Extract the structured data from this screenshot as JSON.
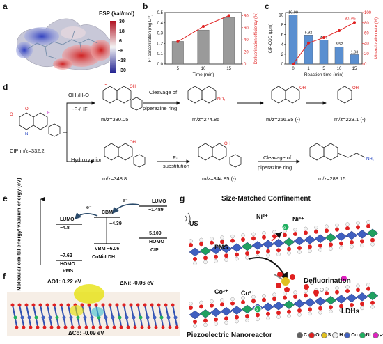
{
  "panels": {
    "a": "a",
    "b": "b",
    "c": "c",
    "d": "d",
    "e": "e",
    "f": "f",
    "g": "g"
  },
  "esp": {
    "title": "ESP (kal/mol)",
    "ticks": [
      "30",
      "18",
      "6",
      "−6",
      "−18",
      "−30"
    ]
  },
  "chart_b": {
    "type": "bar+line",
    "categories": [
      "5",
      "10",
      "15"
    ],
    "bars": [
      0.22,
      0.33,
      0.45
    ],
    "line": [
      37,
      62,
      80
    ],
    "xlabel": "Time (min)",
    "ylabel_left": "F⁻ concentration (mg L⁻¹)",
    "ylabel_right": "Defluorination efficiency (%)",
    "yticks_left": [
      "0.0",
      "0.1",
      "0.2",
      "0.3",
      "0.4",
      "0.5"
    ],
    "yticks_right": [
      "0",
      "20",
      "40",
      "60",
      "80"
    ],
    "ylim_left": [
      0,
      0.5
    ],
    "ylim_right": [
      0,
      85
    ],
    "colors": {
      "bar": "#9a9a9a",
      "line": "#e02020"
    }
  },
  "chart_c": {
    "type": "bar+line",
    "categories": [
      "0",
      "1",
      "5",
      "10",
      "15"
    ],
    "bars": [
      10.0,
      5.92,
      4.87,
      3.52,
      1.93
    ],
    "bar_labels": [
      "10.00",
      "5.92",
      "4.87",
      "3.52",
      "1.93"
    ],
    "line": [
      0,
      40.8,
      51.3,
      64.8,
      80.7
    ],
    "line_label": "80.7%",
    "xlabel": "Reaction time (min)",
    "ylabel_left": "CIP-COD (ppm)",
    "ylabel_right": "Mineralization rate (%)",
    "yticks_left": [
      "0",
      "2",
      "4",
      "6",
      "8",
      "10"
    ],
    "yticks_right": [
      "0",
      "20",
      "40",
      "60",
      "80",
      "100"
    ],
    "ylim_left": [
      0,
      10.5
    ],
    "ylim_right": [
      0,
      100
    ],
    "colors": {
      "bar": "#5a8fd0",
      "line": "#e02020"
    }
  },
  "pathway": {
    "cip": "CIP m/z=332.2",
    "cond_top_1": "OH·/H₂O",
    "cond_top_2": "-F·/HF",
    "cleavage_1": "Cleavage of",
    "cleavage_2": "piperazine ring",
    "hydroxylation": "Hydroxylation",
    "f_sub_1": "F·",
    "f_sub_2": "substitution",
    "cleavage_3": "Cleavage of",
    "cleavage_4": "piperazine ring",
    "mz": [
      "m/z=330.05",
      "m/z=274.85",
      "m/z=266.95 (-)",
      "m/z=223.1 (-)",
      "m/z=348.8",
      "m/z=344.85 (-)",
      "m/z=288.15"
    ]
  },
  "energy": {
    "ylabel": "Molecular orbital energy/ vacuum energy (eV)",
    "pms_lumo": "LUMO",
    "pms_lumo_v": "−4.8",
    "pms_homo_v": "−7.62",
    "pms_homo": "HOMO",
    "pms": "PMS",
    "cbm": "CBM",
    "cbm_v": "−4.39",
    "vbm": "VBM −6.06",
    "ldh": "CoNi-LDH",
    "cip_lumo": "LUMO",
    "cip_lumo_v": "−1.489",
    "cip_homo_v": "−5.109",
    "cip_homo": "HOMO",
    "cip": "CIP",
    "e": "e⁻"
  },
  "charge": {
    "o1": "ΔO1: 0.22 eV",
    "ni": "ΔNi: -0.06 eV",
    "co": "ΔCo: -0.09 eV"
  },
  "scheme": {
    "title": "Size-Matched Confinement",
    "us": "US",
    "ni2": "Ni²⁺",
    "ni3": "Ni³⁺",
    "pms": "PMS",
    "co2": "Co²⁺",
    "co3": "Co³⁺",
    "defl": "Defluorination",
    "ldhs": "LDHs",
    "bottom": "Piezoelectric Nanoreactor",
    "legend": [
      "C",
      "O",
      "S",
      "H",
      "Co",
      "Ni",
      "F⁻"
    ],
    "legend_colors": [
      "#606060",
      "#e02020",
      "#e0c020",
      "#f0f0f0",
      "#4060c0",
      "#20b060",
      "#e020c0"
    ]
  }
}
